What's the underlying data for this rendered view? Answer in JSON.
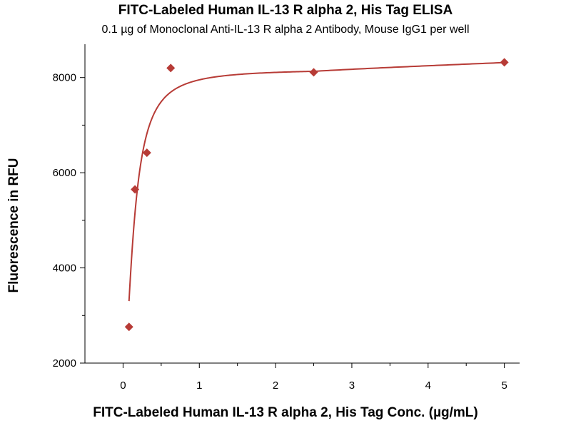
{
  "chart_data": {
    "type": "scatter",
    "title": "FITC-Labeled Human IL-13 R alpha 2, His Tag ELISA",
    "subtitle": "0.1 µg of Monoclonal Anti-IL-13 R alpha 2 Antibody, Mouse IgG1 per well",
    "xlabel": "FITC-Labeled Human IL-13 R alpha 2, His Tag Conc. (µg/mL)",
    "ylabel": "Fluorescence in RFU",
    "xlim": [
      -0.5,
      5.2
    ],
    "ylim": [
      2000,
      8700
    ],
    "xticks": [
      0,
      1,
      2,
      3,
      4,
      5
    ],
    "yticks": [
      2000,
      4000,
      6000,
      8000
    ],
    "grid": false,
    "series": [
      {
        "x": [
          0.078,
          0.156,
          0.3125,
          0.625,
          2.5,
          5.0
        ],
        "y": [
          2760,
          5650,
          6420,
          8200,
          8110,
          8320
        ],
        "color": "#b73b36",
        "marker": "diamond",
        "fit": "sigmoidal"
      }
    ]
  }
}
